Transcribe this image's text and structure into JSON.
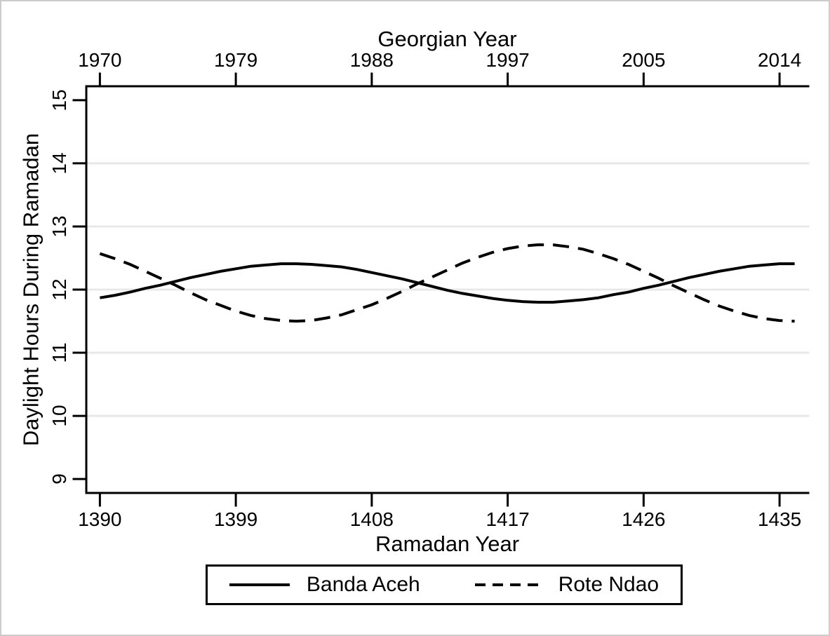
{
  "chart_data": {
    "type": "line",
    "title": "",
    "axes": {
      "x_top": {
        "label": "Georgian Year",
        "tick_labels": [
          "1970",
          "1979",
          "1988",
          "1997",
          "2005",
          "2014"
        ],
        "tick_positions_in_ramadan_years": [
          1390,
          1399,
          1408,
          1417,
          1426,
          1435
        ]
      },
      "x_bottom": {
        "label": "Ramadan Year",
        "ticks": [
          1390,
          1399,
          1408,
          1417,
          1426,
          1435
        ],
        "range": [
          1389.1,
          1436.9
        ]
      },
      "y_left": {
        "label": "Daylight Hours During Ramadan",
        "ticks": [
          9,
          10,
          11,
          12,
          13,
          14,
          15
        ],
        "range": [
          8.78,
          15.22
        ],
        "gridline_values": [
          10,
          11,
          12,
          13,
          14
        ]
      }
    },
    "grid": "horizontal-only",
    "legend": {
      "position": "bottom-center",
      "entries": [
        {
          "label": "Banda Aceh",
          "line_style": "solid"
        },
        {
          "label": "Rote Ndao",
          "line_style": "dashed"
        }
      ]
    },
    "colors": {
      "line": "#000000",
      "text": "#000000",
      "gridline": "#e8e8e8",
      "background": "#ffffff",
      "canvas_border": "#cccccc"
    },
    "x_ramadan_years": [
      1390,
      1391,
      1392,
      1393,
      1394,
      1395,
      1396,
      1397,
      1398,
      1399,
      1400,
      1401,
      1402,
      1403,
      1404,
      1405,
      1406,
      1407,
      1408,
      1409,
      1410,
      1411,
      1412,
      1413,
      1414,
      1415,
      1416,
      1417,
      1418,
      1419,
      1420,
      1421,
      1422,
      1423,
      1424,
      1425,
      1426,
      1427,
      1428,
      1429,
      1430,
      1431,
      1432,
      1433,
      1434,
      1435,
      1436
    ],
    "series": [
      {
        "name": "Banda Aceh",
        "style": "solid",
        "values": [
          11.87,
          11.91,
          11.96,
          12.02,
          12.07,
          12.13,
          12.19,
          12.24,
          12.29,
          12.33,
          12.37,
          12.39,
          12.41,
          12.41,
          12.4,
          12.38,
          12.36,
          12.32,
          12.27,
          12.22,
          12.17,
          12.11,
          12.05,
          11.99,
          11.94,
          11.9,
          11.86,
          11.83,
          11.81,
          11.8,
          11.8,
          11.82,
          11.84,
          11.87,
          11.92,
          11.96,
          12.02,
          12.07,
          12.13,
          12.19,
          12.24,
          12.29,
          12.33,
          12.37,
          12.39,
          12.41,
          12.41
        ]
      },
      {
        "name": "Rote Ndao",
        "style": "dashed",
        "values": [
          12.57,
          12.49,
          12.4,
          12.29,
          12.18,
          12.07,
          11.95,
          11.84,
          11.75,
          11.66,
          11.59,
          11.54,
          11.51,
          11.5,
          11.51,
          11.55,
          11.6,
          11.68,
          11.76,
          11.86,
          11.97,
          12.09,
          12.2,
          12.31,
          12.42,
          12.51,
          12.59,
          12.65,
          12.69,
          12.71,
          12.71,
          12.68,
          12.64,
          12.57,
          12.49,
          12.4,
          12.29,
          12.18,
          12.06,
          11.95,
          11.84,
          11.74,
          11.66,
          11.59,
          11.54,
          11.51,
          11.5
        ]
      }
    ]
  }
}
